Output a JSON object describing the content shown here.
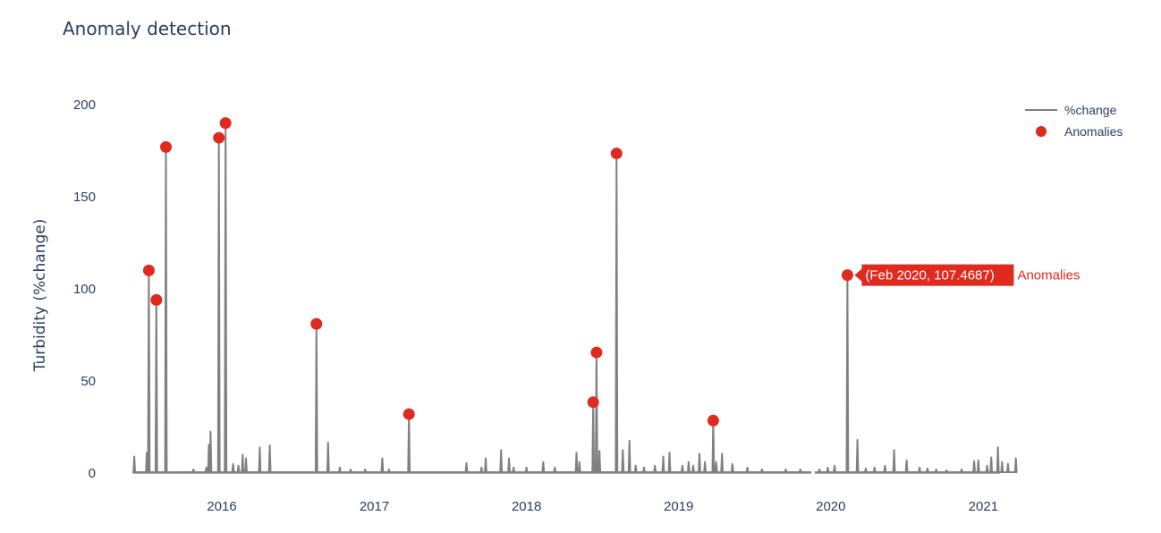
{
  "colors": {
    "line": "#808080",
    "anomaly": "#e02a1f",
    "text": "#2a3f5f",
    "background": "#ffffff"
  },
  "chart_data": {
    "type": "line",
    "title": "Anomaly detection",
    "xlabel": "",
    "ylabel": "Turbidity (%change)",
    "ylim": [
      0,
      200
    ],
    "xlim": [
      "2015-05-25",
      "2021-02-10"
    ],
    "y_ticks": [
      0,
      50,
      100,
      150,
      200
    ],
    "x_ticks": [
      {
        "date": "2016-01-01",
        "label": "2016"
      },
      {
        "date": "2017-01-01",
        "label": "2017"
      },
      {
        "date": "2018-01-01",
        "label": "2018"
      },
      {
        "date": "2019-01-01",
        "label": "2019"
      },
      {
        "date": "2020-01-01",
        "label": "2020"
      },
      {
        "date": "2021-01-01",
        "label": "2021"
      }
    ],
    "legend_position": "top-right",
    "grid": false,
    "series": [
      {
        "name": "%change",
        "kind": "line",
        "gap": [
          "2019-11-15",
          "2019-11-24"
        ],
        "points": [
          [
            "2015-06-05",
            9
          ],
          [
            "2015-07-05",
            11
          ],
          [
            "2015-07-10",
            110
          ],
          [
            "2015-07-28",
            94
          ],
          [
            "2015-08-20",
            177
          ],
          [
            "2015-10-25",
            2
          ],
          [
            "2015-11-25",
            3
          ],
          [
            "2015-12-01",
            15.5
          ],
          [
            "2015-12-05",
            22.5
          ],
          [
            "2015-12-25",
            182
          ],
          [
            "2016-01-10",
            190
          ],
          [
            "2016-01-28",
            5
          ],
          [
            "2016-02-10",
            4
          ],
          [
            "2016-02-20",
            10
          ],
          [
            "2016-02-28",
            8
          ],
          [
            "2016-04-01",
            14
          ],
          [
            "2016-04-25",
            15
          ],
          [
            "2016-08-15",
            81
          ],
          [
            "2016-09-12",
            16.5
          ],
          [
            "2016-10-10",
            3
          ],
          [
            "2016-11-05",
            2
          ],
          [
            "2016-12-10",
            2
          ],
          [
            "2017-01-20",
            8
          ],
          [
            "2017-02-05",
            2
          ],
          [
            "2017-03-25",
            32
          ],
          [
            "2017-08-10",
            5.5
          ],
          [
            "2017-09-15",
            3
          ],
          [
            "2017-09-25",
            8
          ],
          [
            "2017-11-01",
            12.5
          ],
          [
            "2017-11-20",
            8
          ],
          [
            "2017-12-01",
            3
          ],
          [
            "2018-01-01",
            3
          ],
          [
            "2018-02-10",
            6
          ],
          [
            "2018-03-10",
            3
          ],
          [
            "2018-05-01",
            11
          ],
          [
            "2018-05-08",
            6
          ],
          [
            "2018-06-10",
            38.5
          ],
          [
            "2018-06-18",
            65.5
          ],
          [
            "2018-06-25",
            12
          ],
          [
            "2018-08-05",
            173.5
          ],
          [
            "2018-08-20",
            12.5
          ],
          [
            "2018-09-05",
            17.5
          ],
          [
            "2018-09-20",
            4
          ],
          [
            "2018-10-10",
            3
          ],
          [
            "2018-11-05",
            4
          ],
          [
            "2018-11-25",
            9
          ],
          [
            "2018-12-10",
            11
          ],
          [
            "2019-01-10",
            4
          ],
          [
            "2019-01-25",
            6
          ],
          [
            "2019-02-05",
            4
          ],
          [
            "2019-02-20",
            10.5
          ],
          [
            "2019-03-05",
            6
          ],
          [
            "2019-03-25",
            28.5
          ],
          [
            "2019-04-01",
            6
          ],
          [
            "2019-04-15",
            10.5
          ],
          [
            "2019-05-10",
            5
          ],
          [
            "2019-06-15",
            3
          ],
          [
            "2019-07-20",
            2
          ],
          [
            "2019-09-15",
            2
          ],
          [
            "2019-10-20",
            2
          ],
          [
            "2019-12-05",
            2
          ],
          [
            "2019-12-25",
            3
          ],
          [
            "2020-01-10",
            4
          ],
          [
            "2020-02-10",
            107.4687
          ],
          [
            "2020-03-05",
            18
          ],
          [
            "2020-03-25",
            2.5
          ],
          [
            "2020-04-15",
            3
          ],
          [
            "2020-05-10",
            4
          ],
          [
            "2020-06-01",
            12.5
          ],
          [
            "2020-07-01",
            7
          ],
          [
            "2020-08-01",
            3
          ],
          [
            "2020-08-20",
            2.5
          ],
          [
            "2020-09-10",
            2
          ],
          [
            "2020-10-05",
            1.5
          ],
          [
            "2020-11-10",
            2
          ],
          [
            "2020-12-10",
            6.5
          ],
          [
            "2020-12-20",
            7
          ],
          [
            "2021-01-10",
            4
          ],
          [
            "2021-01-20",
            8.5
          ],
          [
            "2021-02-05",
            14
          ],
          [
            "2021-02-15",
            6
          ],
          [
            "2021-03-01",
            5
          ],
          [
            "2021-03-20",
            8
          ]
        ]
      },
      {
        "name": "Anomalies",
        "kind": "markers",
        "points": [
          [
            "2015-07-10",
            110
          ],
          [
            "2015-07-28",
            94
          ],
          [
            "2015-08-20",
            177
          ],
          [
            "2015-12-25",
            182
          ],
          [
            "2016-01-10",
            190
          ],
          [
            "2016-08-15",
            81
          ],
          [
            "2017-03-25",
            32
          ],
          [
            "2018-06-10",
            38.5
          ],
          [
            "2018-06-18",
            65.5
          ],
          [
            "2018-08-05",
            173.5
          ],
          [
            "2019-03-25",
            28.5
          ],
          [
            "2020-02-10",
            107.4687
          ]
        ]
      }
    ],
    "hover": {
      "point_date": "2020-02-10",
      "point_value": 107.4687,
      "text": "(Feb 2020, 107.4687)",
      "name": "Anomalies"
    }
  }
}
